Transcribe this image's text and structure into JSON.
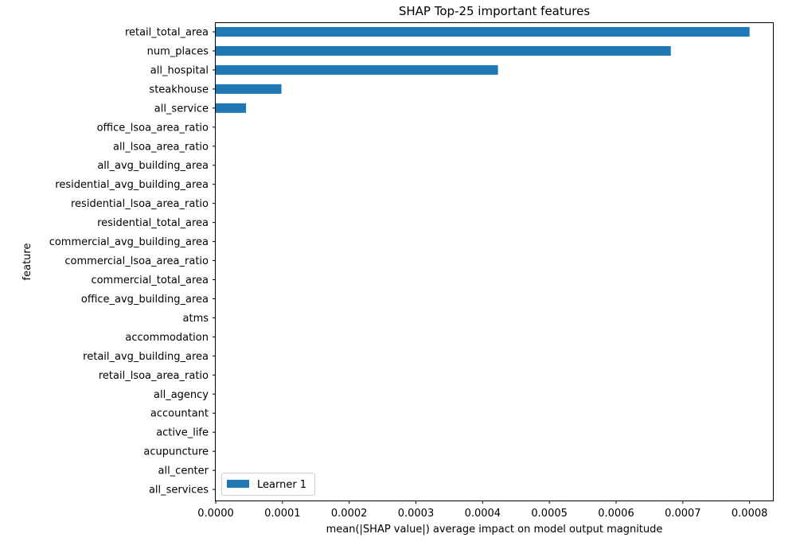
{
  "chart_data": {
    "type": "bar",
    "orientation": "horizontal",
    "title": "SHAP Top-25 important features",
    "xlabel": "mean(|SHAP value|) average impact on model output magnitude",
    "ylabel": "feature",
    "xlim": [
      0,
      0.000835
    ],
    "x_ticks": [
      "0.0000",
      "0.0001",
      "0.0002",
      "0.0003",
      "0.0004",
      "0.0005",
      "0.0006",
      "0.0007",
      "0.0008"
    ],
    "x_tick_values": [
      0,
      0.0001,
      0.0002,
      0.0003,
      0.0004,
      0.0005,
      0.0006,
      0.0007,
      0.0008
    ],
    "grid": false,
    "legend_position": "lower-left",
    "categories": [
      "retail_total_area",
      "num_places",
      "all_hospital",
      "steakhouse",
      "all_service",
      "office_lsoa_area_ratio",
      "all_lsoa_area_ratio",
      "all_avg_building_area",
      "residential_avg_building_area",
      "residential_lsoa_area_ratio",
      "residential_total_area",
      "commercial_avg_building_area",
      "commercial_lsoa_area_ratio",
      "commercial_total_area",
      "office_avg_building_area",
      "atms",
      "accommodation",
      "retail_avg_building_area",
      "retail_lsoa_area_ratio",
      "all_agency",
      "accountant",
      "active_life",
      "acupuncture",
      "all_center",
      "all_services"
    ],
    "series": [
      {
        "name": "Learner 1",
        "color": "#1f77b4",
        "values": [
          0.0008,
          0.000682,
          0.000423,
          9.85e-05,
          4.55e-05,
          0,
          0,
          0,
          0,
          0,
          0,
          0,
          0,
          0,
          0,
          0,
          0,
          0,
          0,
          0,
          0,
          0,
          0,
          0,
          0
        ]
      }
    ]
  }
}
